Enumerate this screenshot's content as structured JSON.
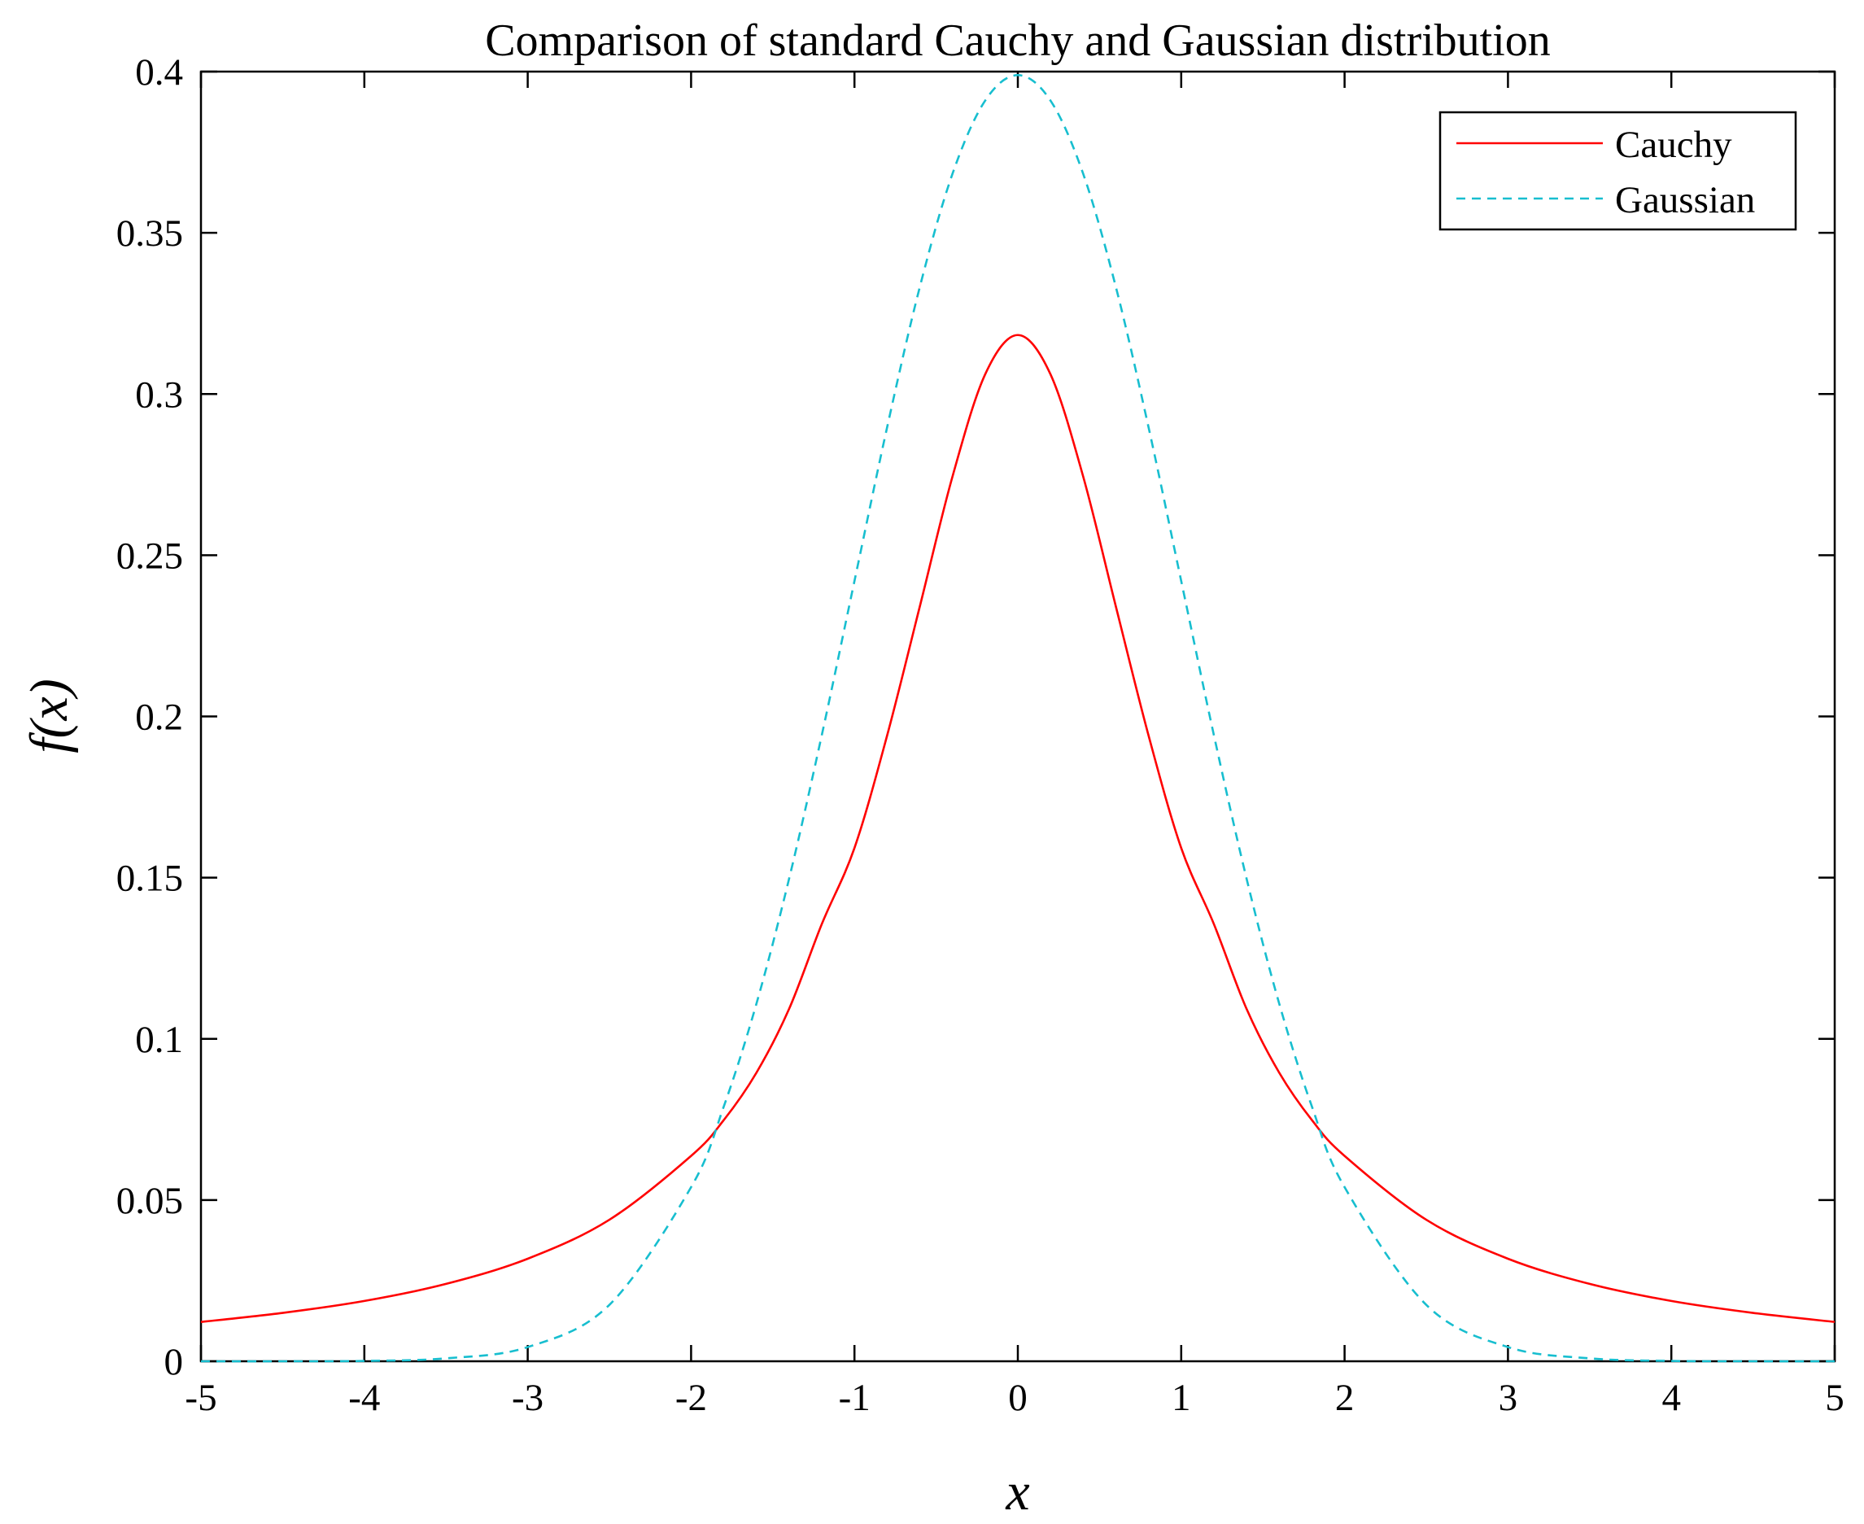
{
  "chart_data": {
    "type": "line",
    "title": "Comparison of standard Cauchy and Gaussian distribution",
    "xlabel": "x",
    "ylabel": "f(x)",
    "xlim": [
      -5,
      5
    ],
    "ylim": [
      0,
      0.4
    ],
    "grid": false,
    "legend_position": "top-right",
    "x_ticks": [
      -5,
      -4,
      -3,
      -2,
      -1,
      0,
      1,
      2,
      3,
      4,
      5
    ],
    "x_tick_labels": [
      "-5",
      "-4",
      "-3",
      "-2",
      "-1",
      "0",
      "1",
      "2",
      "3",
      "4",
      "5"
    ],
    "y_ticks": [
      0,
      0.05,
      0.1,
      0.15,
      0.2,
      0.25,
      0.3,
      0.35,
      0.4
    ],
    "y_tick_labels": [
      "0",
      "0.05",
      "0.1",
      "0.15",
      "0.2",
      "0.25",
      "0.3",
      "0.35",
      "0.4"
    ],
    "x": [
      -5,
      -4.5,
      -4,
      -3.5,
      -3,
      -2.5,
      -2,
      -1.8,
      -1.6,
      -1.4,
      -1.2,
      -1,
      -0.8,
      -0.6,
      -0.4,
      -0.2,
      0,
      0.2,
      0.4,
      0.6,
      0.8,
      1,
      1.2,
      1.4,
      1.6,
      1.8,
      2,
      2.5,
      3,
      3.5,
      4,
      4.5,
      5
    ],
    "series": [
      {
        "name": "Cauchy",
        "color": "#ff0000",
        "dash": "solid",
        "values": [
          0.0122,
          0.015,
          0.0187,
          0.024,
          0.0318,
          0.0439,
          0.0637,
          0.0748,
          0.0895,
          0.1093,
          0.1356,
          0.1592,
          0.1941,
          0.2341,
          0.2744,
          0.3061,
          0.3183,
          0.3061,
          0.2744,
          0.2341,
          0.1941,
          0.1592,
          0.1356,
          0.1093,
          0.0895,
          0.0748,
          0.0637,
          0.0439,
          0.0318,
          0.024,
          0.0187,
          0.015,
          0.0122
        ]
      },
      {
        "name": "Gaussian",
        "color": "#17becf",
        "dash": "dashed",
        "values": [
          0.0,
          0.0,
          0.0001,
          0.0009,
          0.0044,
          0.0175,
          0.054,
          0.079,
          0.1109,
          0.1497,
          0.1942,
          0.242,
          0.2897,
          0.3332,
          0.3683,
          0.391,
          0.3989,
          0.391,
          0.3683,
          0.3332,
          0.2897,
          0.242,
          0.1942,
          0.1497,
          0.1109,
          0.079,
          0.054,
          0.0175,
          0.0044,
          0.0009,
          0.0001,
          0.0,
          0.0
        ]
      }
    ]
  }
}
